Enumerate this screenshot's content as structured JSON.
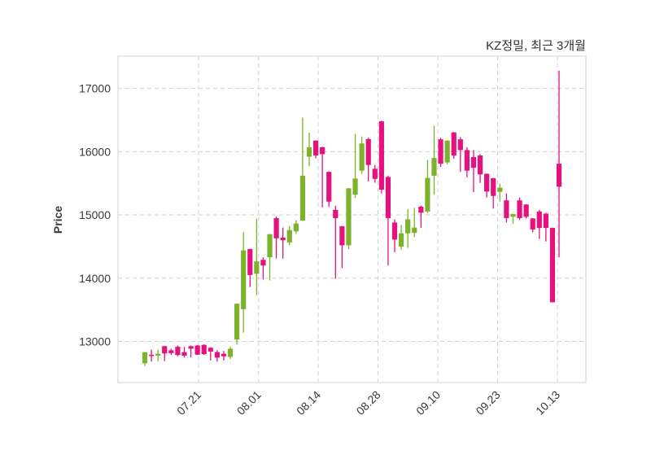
{
  "title": "KZ정밀, 최근 3개월",
  "ylabel": "Price",
  "colors": {
    "up": "#7db32b",
    "down": "#e5117e",
    "grid": "#d2d2d2",
    "plot_border": "#d9d9d9",
    "tick_text": "#3a3a3a",
    "title_text": "#303030",
    "background": "#ffffff"
  },
  "chart_data": {
    "type": "candlestick",
    "title": "KZ정밀, 최근 3개월",
    "xlabel": "",
    "ylabel": "Price",
    "grid": "dashed, both axes",
    "legend": "none",
    "y_ticks": [
      13000,
      14000,
      15000,
      16000,
      17000
    ],
    "ylim": [
      12350,
      17510
    ],
    "x_tick_labels": [
      "07.21",
      "08.01",
      "08.14",
      "08.28",
      "09.10",
      "09.23",
      "10.13"
    ],
    "x_tick_positions": [
      8.17,
      17.29,
      26.36,
      35.46,
      44.56,
      53.66,
      62.75
    ],
    "up_color": "#7db32b",
    "down_color": "#e5117e",
    "ohlc_order": [
      "open",
      "high",
      "low",
      "close"
    ],
    "candles": [
      [
        12655,
        12830,
        12610,
        12830
      ],
      [
        12790,
        12870,
        12680,
        12770
      ],
      [
        12775,
        12870,
        12690,
        12805
      ],
      [
        12925,
        12930,
        12690,
        12810
      ],
      [
        12860,
        12885,
        12785,
        12815
      ],
      [
        12915,
        12935,
        12765,
        12785
      ],
      [
        12830,
        12915,
        12745,
        12775
      ],
      [
        12925,
        12935,
        12745,
        12885
      ],
      [
        12935,
        12945,
        12785,
        12790
      ],
      [
        12945,
        12955,
        12785,
        12800
      ],
      [
        12900,
        12910,
        12700,
        12840
      ],
      [
        12830,
        12860,
        12680,
        12745
      ],
      [
        12805,
        12850,
        12700,
        12765
      ],
      [
        12755,
        12915,
        12720,
        12885
      ],
      [
        13030,
        13600,
        12950,
        13595
      ],
      [
        13510,
        14730,
        13140,
        14440
      ],
      [
        14460,
        14465,
        13860,
        14050
      ],
      [
        14070,
        14940,
        13730,
        14265
      ],
      [
        14290,
        14330,
        13980,
        14200
      ],
      [
        14330,
        14700,
        13965,
        14695
      ],
      [
        14950,
        14975,
        14310,
        14630
      ],
      [
        14640,
        14800,
        14310,
        14600
      ],
      [
        14565,
        14825,
        14520,
        14760
      ],
      [
        14740,
        14920,
        14700,
        14865
      ],
      [
        14910,
        16540,
        14905,
        15620
      ],
      [
        15920,
        16300,
        15770,
        16070
      ],
      [
        16175,
        16180,
        15895,
        15940
      ],
      [
        16070,
        16080,
        15120,
        15960
      ],
      [
        15680,
        15690,
        15125,
        15210
      ],
      [
        15080,
        15145,
        13990,
        14950
      ],
      [
        14820,
        14825,
        14160,
        14520
      ],
      [
        14520,
        15425,
        14460,
        15420
      ],
      [
        15320,
        16280,
        15270,
        15575
      ],
      [
        15700,
        16240,
        15650,
        16130
      ],
      [
        16200,
        16220,
        15530,
        15790
      ],
      [
        15730,
        15790,
        15510,
        15570
      ],
      [
        16480,
        16490,
        15340,
        15400
      ],
      [
        15600,
        15620,
        14200,
        14950
      ],
      [
        14880,
        14930,
        14410,
        14610
      ],
      [
        14500,
        14840,
        14455,
        14710
      ],
      [
        14710,
        15090,
        14480,
        14930
      ],
      [
        14715,
        15110,
        14650,
        14800
      ],
      [
        15130,
        15145,
        14795,
        15035
      ],
      [
        15055,
        15870,
        15030,
        15585
      ],
      [
        15620,
        16410,
        15320,
        15900
      ],
      [
        16195,
        16220,
        15760,
        15810
      ],
      [
        15830,
        16180,
        15800,
        16175
      ],
      [
        16305,
        16310,
        15890,
        15940
      ],
      [
        16195,
        16230,
        15680,
        16025
      ],
      [
        16025,
        16070,
        15595,
        15700
      ],
      [
        15915,
        16025,
        15360,
        15745
      ],
      [
        15940,
        15960,
        15505,
        15640
      ],
      [
        15650,
        15655,
        15275,
        15370
      ],
      [
        15580,
        15585,
        15100,
        15300
      ],
      [
        15365,
        15495,
        15210,
        15430
      ],
      [
        15230,
        15340,
        14880,
        14950
      ],
      [
        14970,
        15020,
        14860,
        15015
      ],
      [
        15230,
        15275,
        14920,
        14950
      ],
      [
        15165,
        15170,
        14945,
        14970
      ],
      [
        14945,
        14950,
        14725,
        14770
      ],
      [
        15055,
        15080,
        14620,
        14795
      ],
      [
        15020,
        15035,
        14580,
        14795
      ],
      [
        14795,
        14800,
        13615,
        13620
      ],
      [
        15810,
        17280,
        14330,
        15445
      ]
    ]
  }
}
